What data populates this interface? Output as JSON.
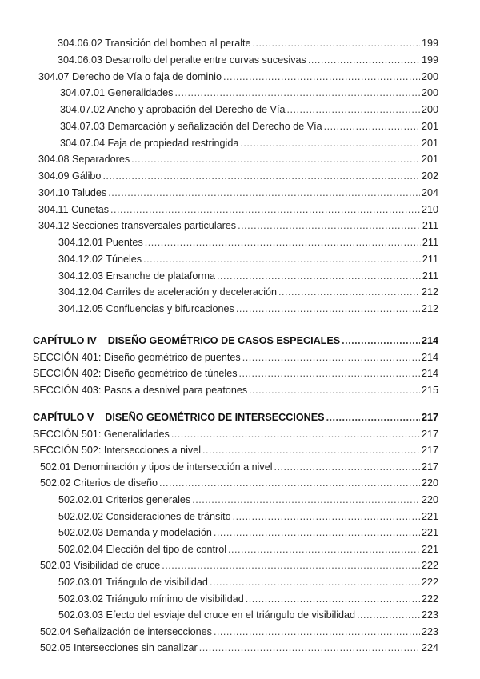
{
  "toc": {
    "groups": [
      {
        "entries": [
          {
            "level": "l2",
            "title": "304.06.02 Transición del bombeo al peralte",
            "page": "199"
          },
          {
            "level": "l2",
            "title": "304.06.03 Desarrollo del peralte entre curvas sucesivas",
            "page": "199"
          },
          {
            "level": "l1",
            "title": "304.07 Derecho de Vía o faja de dominio",
            "page": "200"
          },
          {
            "level": "l2b",
            "title": "304.07.01 Generalidades",
            "page": "200"
          },
          {
            "level": "l2b",
            "title": "304.07.02 Ancho y aprobación del Derecho de Vía",
            "page": "200"
          },
          {
            "level": "l2b",
            "title": "304.07.03 Demarcación y señalización del Derecho de Vía",
            "page": "201"
          },
          {
            "level": "l2b",
            "title": "304.07.04 Faja de propiedad restringida",
            "page": "201"
          },
          {
            "level": "l1",
            "title": "304.08 Separadores",
            "page": "201"
          },
          {
            "level": "l1",
            "title": "304.09 Gálibo",
            "page": "202"
          },
          {
            "level": "l1",
            "title": "304.10 Taludes",
            "page": "204"
          },
          {
            "level": "l1",
            "title": "304.11 Cunetas",
            "page": "210"
          },
          {
            "level": "l1",
            "title": "304.12 Secciones transversales particulares",
            "page": "211"
          },
          {
            "level": "l2c",
            "title": "304.12.01 Puentes",
            "page": "211"
          },
          {
            "level": "l2c",
            "title": "304.12.02 Túneles",
            "page": "211"
          },
          {
            "level": "l2c",
            "title": "304.12.03 Ensanche de plataforma",
            "page": "211"
          },
          {
            "level": "l2c",
            "title": "304.12.04 Carriles de aceleración y deceleración",
            "page": "212"
          },
          {
            "level": "l2c",
            "title": "304.12.05 Confluencias y bifurcaciones",
            "page": "212"
          }
        ]
      },
      {
        "entries": [
          {
            "level": "chapter",
            "label": "CAPÍTULO IV",
            "title": "DISEÑO GEOMÉTRICO DE CASOS ESPECIALES",
            "page": "214"
          },
          {
            "level": "section",
            "title": "SECCIÓN 401: Diseño geométrico de puentes",
            "page": "214"
          },
          {
            "level": "section",
            "title": "SECCIÓN 402: Diseño geométrico de túneles",
            "page": "214"
          },
          {
            "level": "section",
            "title": "SECCIÓN 403: Pasos a desnivel para peatones",
            "page": "215"
          }
        ]
      },
      {
        "entries": [
          {
            "level": "chapter",
            "label": "CAPÍTULO V",
            "title": "DISEÑO GEOMÉTRICO DE INTERSECCIONES",
            "page": "217"
          },
          {
            "level": "section",
            "title": "SECCIÓN 501: Generalidades",
            "page": "217"
          },
          {
            "level": "section",
            "title": "SECCIÓN 502: Intersecciones a nivel",
            "page": "217"
          },
          {
            "level": "l1b",
            "title": "502.01 Denominación y tipos de intersección a nivel",
            "page": "217"
          },
          {
            "level": "l1b",
            "title": "502.02 Criterios de diseño",
            "page": "220"
          },
          {
            "level": "l2c",
            "title": "502.02.01 Criterios generales",
            "page": "220"
          },
          {
            "level": "l2c",
            "title": "502.02.02 Consideraciones de tránsito",
            "page": "221"
          },
          {
            "level": "l2c",
            "title": "502.02.03 Demanda y modelación",
            "page": "221"
          },
          {
            "level": "l2c",
            "title": "502.02.04 Elección del tipo de control",
            "page": "221"
          },
          {
            "level": "l1b",
            "title": "502.03 Visibilidad de cruce",
            "page": "222"
          },
          {
            "level": "l2c",
            "title": "502.03.01 Triángulo de visibilidad",
            "page": "222"
          },
          {
            "level": "l2c",
            "title": "502.03.02 Triángulo mínimo de visibilidad",
            "page": "222"
          },
          {
            "level": "l2c",
            "title": "502.03.03 Efecto del esviaje del cruce en el triángulo de visibilidad",
            "page": "223"
          },
          {
            "level": "l1b",
            "title": "502.04 Señalización de intersecciones",
            "page": "223"
          },
          {
            "level": "l1b",
            "title": "502.05 Intersecciones sin canalizar",
            "page": "224"
          }
        ]
      }
    ]
  }
}
